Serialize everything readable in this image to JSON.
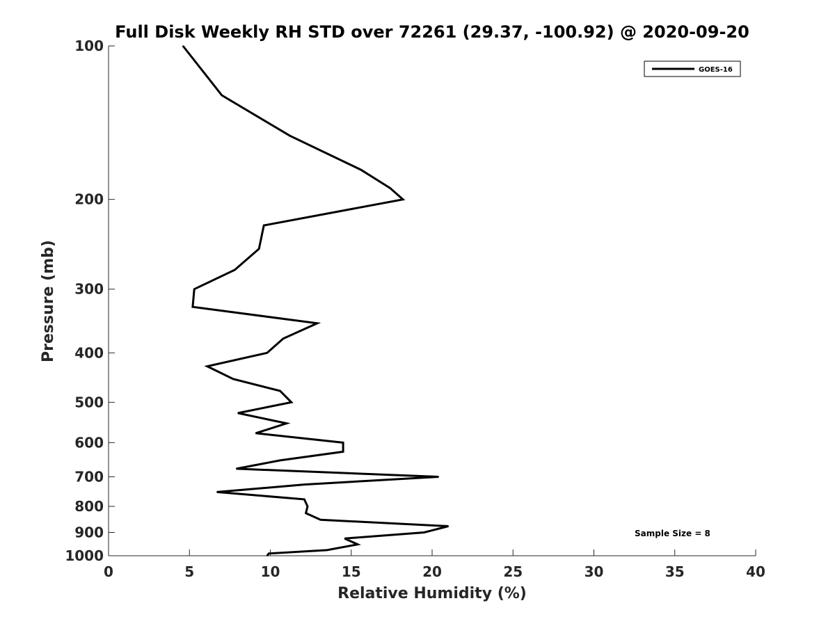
{
  "chart_data": {
    "type": "line",
    "title": "Full Disk Weekly RH STD over 72261 (29.37, -100.92) @ 2020-09-20",
    "xlabel": "Relative Humidity (%)",
    "ylabel": "Pressure (mb)",
    "xlim": [
      0,
      40
    ],
    "ylim": [
      100,
      1000
    ],
    "yscale": "log",
    "y_reversed": true,
    "x_ticks": [
      0,
      5,
      10,
      15,
      20,
      25,
      30,
      35,
      40
    ],
    "x_tick_labels": [
      "0",
      "5",
      "10",
      "15",
      "20",
      "25",
      "30",
      "35",
      "40"
    ],
    "y_ticks": [
      100,
      200,
      300,
      400,
      500,
      600,
      700,
      800,
      900,
      1000
    ],
    "y_tick_labels": [
      "100",
      "200",
      "300",
      "400",
      "500",
      "600",
      "700",
      "800",
      "900",
      "1000"
    ],
    "legend_position": "top-right",
    "series": [
      {
        "name": "GOES-16",
        "color": "#000000",
        "points": [
          {
            "rh": 4.6,
            "p": 100
          },
          {
            "rh": 7.0,
            "p": 125
          },
          {
            "rh": 11.2,
            "p": 150
          },
          {
            "rh": 15.6,
            "p": 175
          },
          {
            "rh": 17.4,
            "p": 190
          },
          {
            "rh": 18.2,
            "p": 200
          },
          {
            "rh": 9.6,
            "p": 225
          },
          {
            "rh": 9.3,
            "p": 250
          },
          {
            "rh": 7.8,
            "p": 275
          },
          {
            "rh": 5.3,
            "p": 300
          },
          {
            "rh": 5.2,
            "p": 325
          },
          {
            "rh": 5.2,
            "p": 325
          },
          {
            "rh": 12.9,
            "p": 350
          },
          {
            "rh": 10.8,
            "p": 375
          },
          {
            "rh": 9.8,
            "p": 400
          },
          {
            "rh": 6.1,
            "p": 425
          },
          {
            "rh": 7.7,
            "p": 450
          },
          {
            "rh": 10.6,
            "p": 475
          },
          {
            "rh": 11.3,
            "p": 500
          },
          {
            "rh": 8.0,
            "p": 525
          },
          {
            "rh": 11.0,
            "p": 550
          },
          {
            "rh": 9.1,
            "p": 575
          },
          {
            "rh": 14.5,
            "p": 600
          },
          {
            "rh": 14.5,
            "p": 625
          },
          {
            "rh": 10.6,
            "p": 650
          },
          {
            "rh": 7.9,
            "p": 675
          },
          {
            "rh": 20.4,
            "p": 700
          },
          {
            "rh": 12.1,
            "p": 725
          },
          {
            "rh": 6.7,
            "p": 750
          },
          {
            "rh": 12.1,
            "p": 775
          },
          {
            "rh": 12.3,
            "p": 800
          },
          {
            "rh": 12.2,
            "p": 825
          },
          {
            "rh": 13.1,
            "p": 850
          },
          {
            "rh": 21.0,
            "p": 875
          },
          {
            "rh": 19.5,
            "p": 900
          },
          {
            "rh": 14.6,
            "p": 925
          },
          {
            "rh": 15.4,
            "p": 950
          },
          {
            "rh": 13.5,
            "p": 975
          },
          {
            "rh": 9.9,
            "p": 990
          },
          {
            "rh": 9.8,
            "p": 1000
          }
        ]
      }
    ],
    "annotation": "Sample Size = 8"
  }
}
